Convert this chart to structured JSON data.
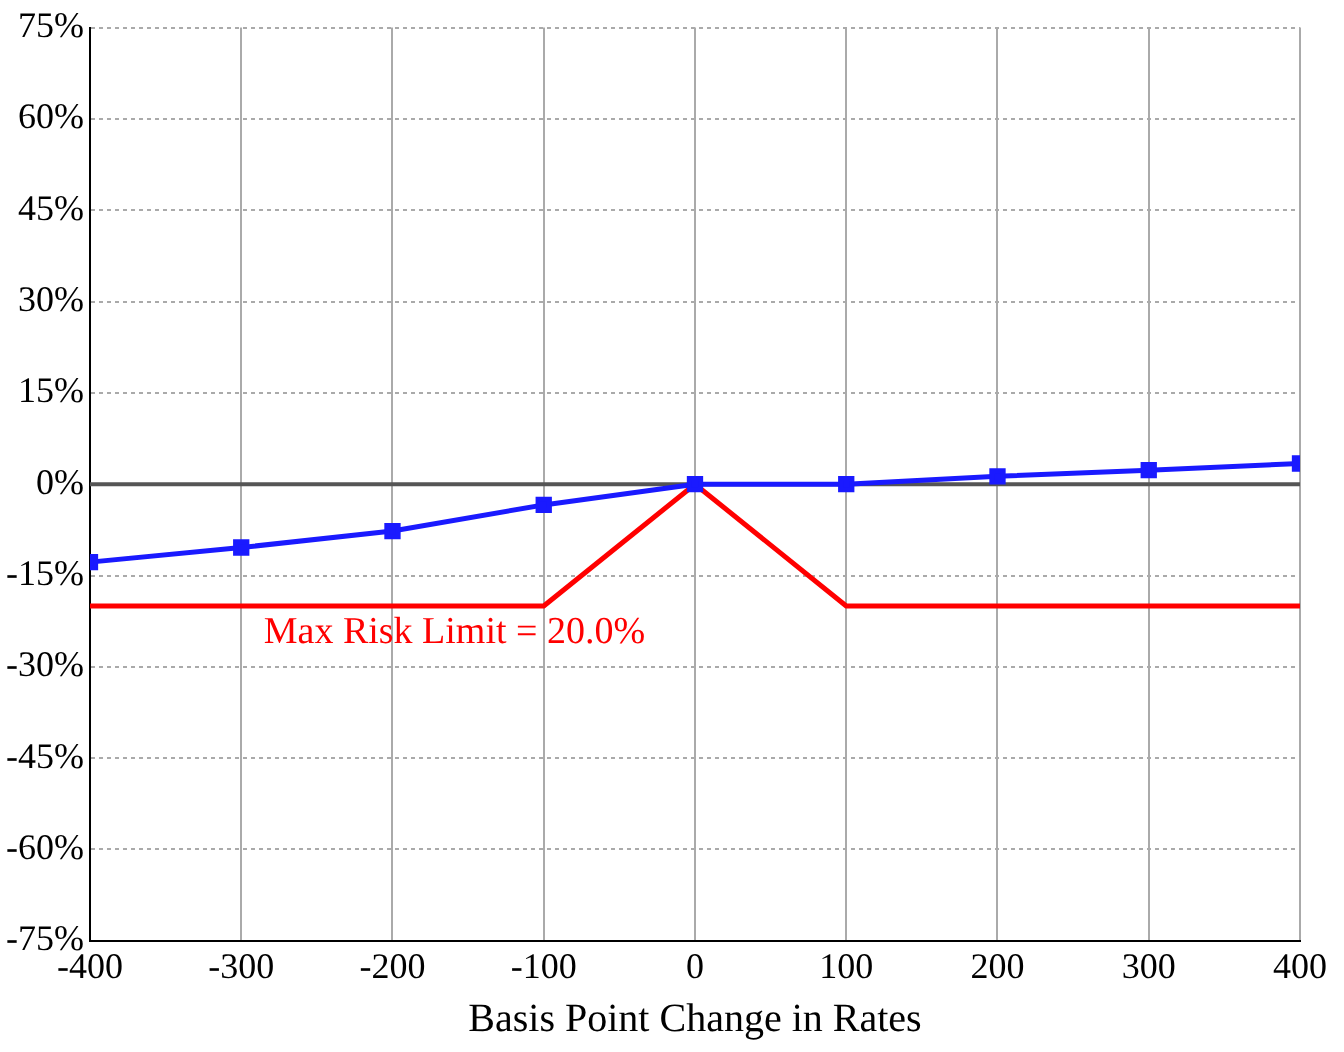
{
  "chart_data": {
    "type": "line",
    "xlabel": "Basis Point Change in Rates",
    "x": [
      -400,
      -300,
      -200,
      -100,
      0,
      100,
      200,
      300,
      400
    ],
    "series": [
      {
        "color": "#1a1aff",
        "marker": "square",
        "values": [
          -12.8,
          -10.4,
          -7.7,
          -3.4,
          0,
          0,
          1.3,
          2.3,
          3.4
        ]
      },
      {
        "color": "#ff0000",
        "marker": "none",
        "x": [
          -400,
          -100,
          0,
          100,
          400
        ],
        "values": [
          -20,
          -20,
          0,
          -20,
          -20
        ]
      }
    ],
    "xlim": [
      -400,
      400
    ],
    "xticks": [
      -400,
      -300,
      -200,
      -100,
      0,
      100,
      200,
      300,
      400
    ],
    "ylim": [
      -75,
      75
    ],
    "yticks": [
      {
        "value": -75,
        "label": "-75%"
      },
      {
        "value": -60,
        "label": "-60%"
      },
      {
        "value": -45,
        "label": "-45%"
      },
      {
        "value": -30,
        "label": "-30%"
      },
      {
        "value": -15,
        "label": "-15%"
      },
      {
        "value": 0,
        "label": "0%"
      },
      {
        "value": 15,
        "label": "15%"
      },
      {
        "value": 30,
        "label": "30%"
      },
      {
        "value": 45,
        "label": "45%"
      },
      {
        "value": 60,
        "label": "60%"
      },
      {
        "value": 75,
        "label": "75%"
      }
    ],
    "ref_lines": [
      {
        "axis": "y",
        "value": 0,
        "color": "#555555"
      }
    ],
    "annotations": [
      {
        "text": "Max Risk Limit = 20.0%",
        "x": -100,
        "y": -20
      }
    ],
    "grid": true,
    "legend": false
  }
}
